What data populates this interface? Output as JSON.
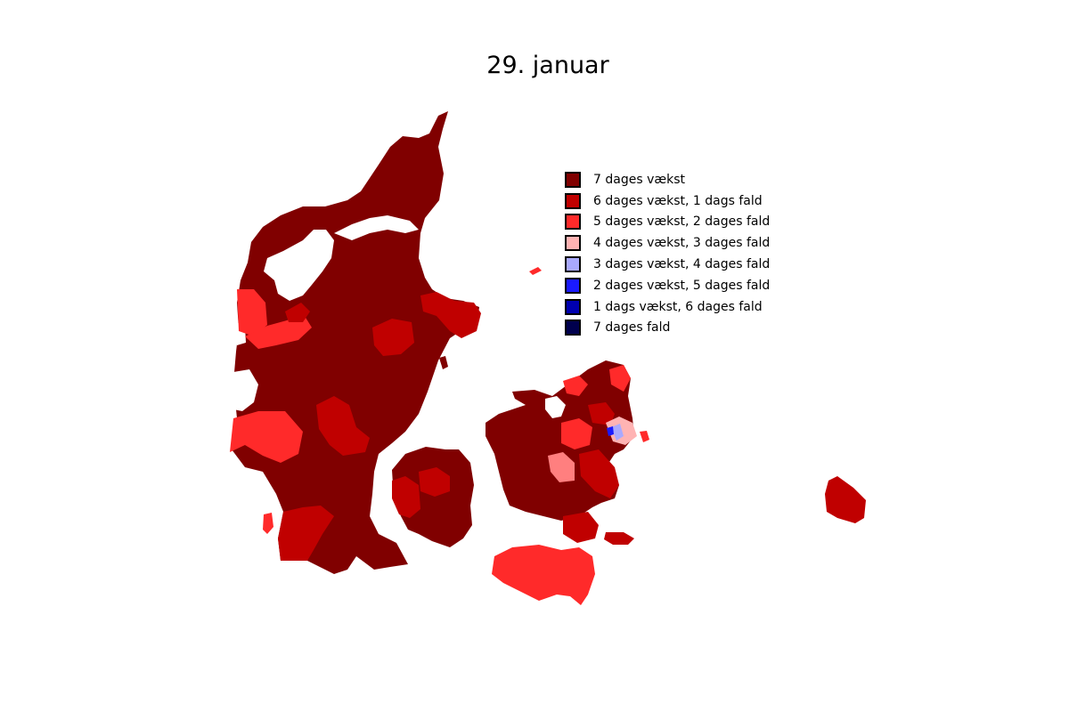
{
  "title": "29. januar",
  "legend": {
    "items": [
      {
        "label": "7 dages vækst",
        "color": "#800000"
      },
      {
        "label": "6 dages vækst, 1 dags fald",
        "color": "#c00000"
      },
      {
        "label": "5 dages vækst, 2 dages fald",
        "color": "#ff2a2a"
      },
      {
        "label": "4 dages vækst, 3 dages fald",
        "color": "#ffb3b3"
      },
      {
        "label": "3 dages vækst, 4 dages fald",
        "color": "#a9a9ff"
      },
      {
        "label": "2 dages vækst, 5 dages fald",
        "color": "#1a1aff"
      },
      {
        "label": "1 dags vækst, 6 dages fald",
        "color": "#0000b0"
      },
      {
        "label": "7 dages fald",
        "color": "#00004d"
      }
    ]
  }
}
